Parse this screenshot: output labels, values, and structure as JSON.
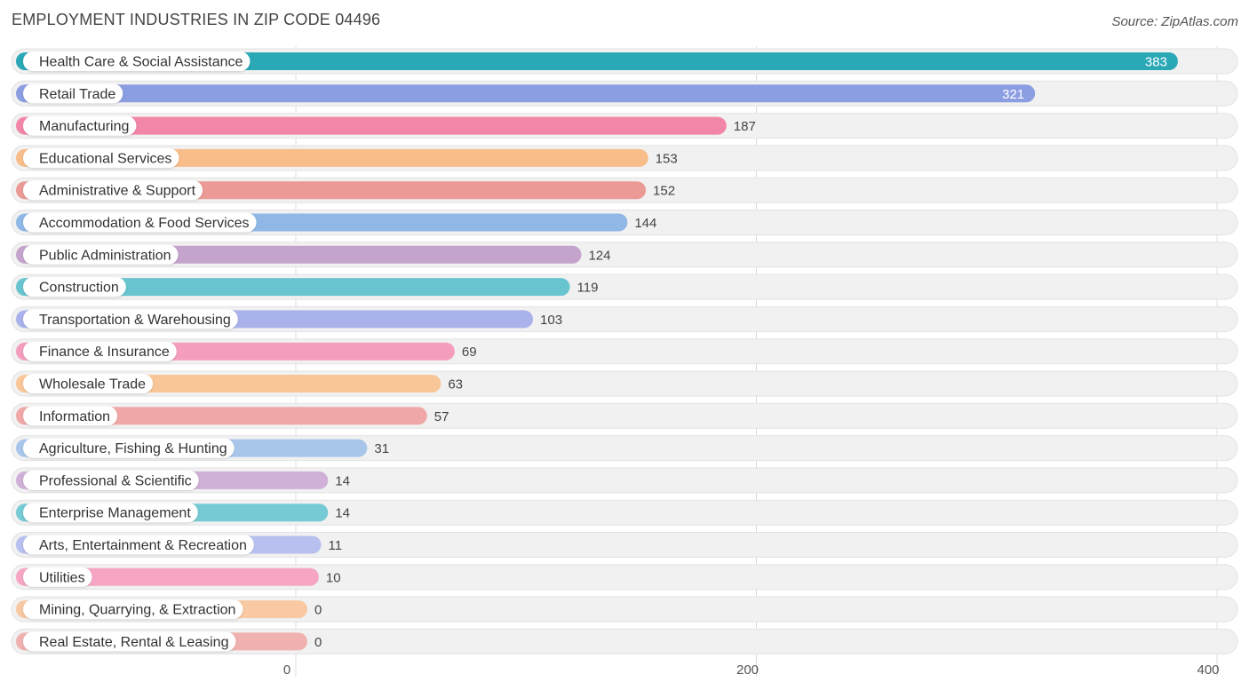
{
  "title": "EMPLOYMENT INDUSTRIES IN ZIP CODE 04496",
  "source": "Source: ZipAtlas.com",
  "chart_data": {
    "type": "bar",
    "orientation": "horizontal",
    "title": "EMPLOYMENT INDUSTRIES IN ZIP CODE 04496",
    "xlabel": "",
    "ylabel": "",
    "xlim": [
      0,
      400
    ],
    "ticks": [
      0,
      200,
      400
    ],
    "grid": true,
    "categories": [
      "Health Care & Social Assistance",
      "Retail Trade",
      "Manufacturing",
      "Educational Services",
      "Administrative & Support",
      "Accommodation & Food Services",
      "Public Administration",
      "Construction",
      "Transportation & Warehousing",
      "Finance & Insurance",
      "Wholesale Trade",
      "Information",
      "Agriculture, Fishing & Hunting",
      "Professional & Scientific",
      "Enterprise Management",
      "Arts, Entertainment & Recreation",
      "Utilities",
      "Mining, Quarrying, & Extraction",
      "Real Estate, Rental & Leasing"
    ],
    "values": [
      383,
      321,
      187,
      153,
      152,
      144,
      124,
      119,
      103,
      69,
      63,
      57,
      31,
      14,
      14,
      11,
      10,
      0,
      0
    ],
    "colors": [
      "#2aa8b6",
      "#8c9ee2",
      "#f286a6",
      "#f9bd8a",
      "#eb9a96",
      "#8fb8e6",
      "#c4a3cd",
      "#68c4ce",
      "#a9b2ea",
      "#f59dbd",
      "#f9c698",
      "#f0a8a6",
      "#a7c6ea",
      "#d0b0d6",
      "#75cad3",
      "#b7c0ee",
      "#f6a6c4",
      "#f8c9a2",
      "#f0b2b0"
    ]
  }
}
